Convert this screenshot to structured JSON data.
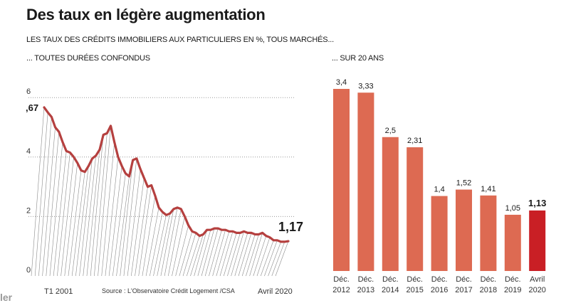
{
  "title": "Des taux en légère augmentation",
  "subtitle": "LES TAUX DES CRÉDITS IMMOBILIERS AUX PARTICULIERS EN %, TOUS MARCHÉS...",
  "source": "Source : L'Observatoire Crédit Logement /CSA",
  "edge_fragment": "ler",
  "colors": {
    "line": "#b5403f",
    "bar": "#dd6a52",
    "bar_highlight": "#c91f25",
    "hatch": "#8a8a8a"
  },
  "chart_data": [
    {
      "type": "line",
      "caption": "... TOUTES DURÉES CONFONDUS",
      "title": "",
      "yticks": [
        "0",
        "2",
        "4",
        "6"
      ],
      "ylim": [
        0,
        6.5
      ],
      "xlabels": [
        "T1 2001",
        "Avril 2020"
      ],
      "start_label": ",67",
      "end_label": "1,17",
      "series": [
        {
          "values": [
            5.67,
            5.5,
            5.35,
            5.0,
            4.85,
            4.5,
            4.2,
            4.15,
            4.0,
            3.8,
            3.55,
            3.5,
            3.7,
            3.95,
            4.05,
            4.25,
            4.75,
            4.8,
            5.05,
            4.5,
            4.0,
            3.7,
            3.45,
            3.35,
            3.9,
            3.95,
            3.6,
            3.3,
            3.0,
            3.05,
            2.7,
            2.3,
            2.15,
            2.05,
            2.1,
            2.25,
            2.3,
            2.25,
            2.0,
            1.7,
            1.5,
            1.45,
            1.35,
            1.4,
            1.55,
            1.55,
            1.6,
            1.6,
            1.55,
            1.55,
            1.5,
            1.5,
            1.45,
            1.45,
            1.5,
            1.45,
            1.45,
            1.4,
            1.4,
            1.45,
            1.35,
            1.3,
            1.2,
            1.2,
            1.15,
            1.15,
            1.17
          ]
        }
      ]
    },
    {
      "type": "bar",
      "caption": "... SUR 20 ANS",
      "categories": [
        [
          "Déc.",
          "2012"
        ],
        [
          "Déc.",
          "2013"
        ],
        [
          "Déc.",
          "2014"
        ],
        [
          "Déc.",
          "2015"
        ],
        [
          "Déc.",
          "2016"
        ],
        [
          "Déc.",
          "2017"
        ],
        [
          "Déc.",
          "2018"
        ],
        [
          "Déc.",
          "2019"
        ],
        [
          "Avril",
          "2020"
        ]
      ],
      "values": [
        3.4,
        3.33,
        2.5,
        2.31,
        1.4,
        1.52,
        1.41,
        1.05,
        1.13
      ],
      "value_labels": [
        "3,4",
        "3,33",
        "2,5",
        "2,31",
        "1,4",
        "1,52",
        "1,41",
        "1,05",
        "1,13"
      ],
      "highlight_index": 8,
      "ylim": [
        0,
        3.6
      ]
    }
  ]
}
